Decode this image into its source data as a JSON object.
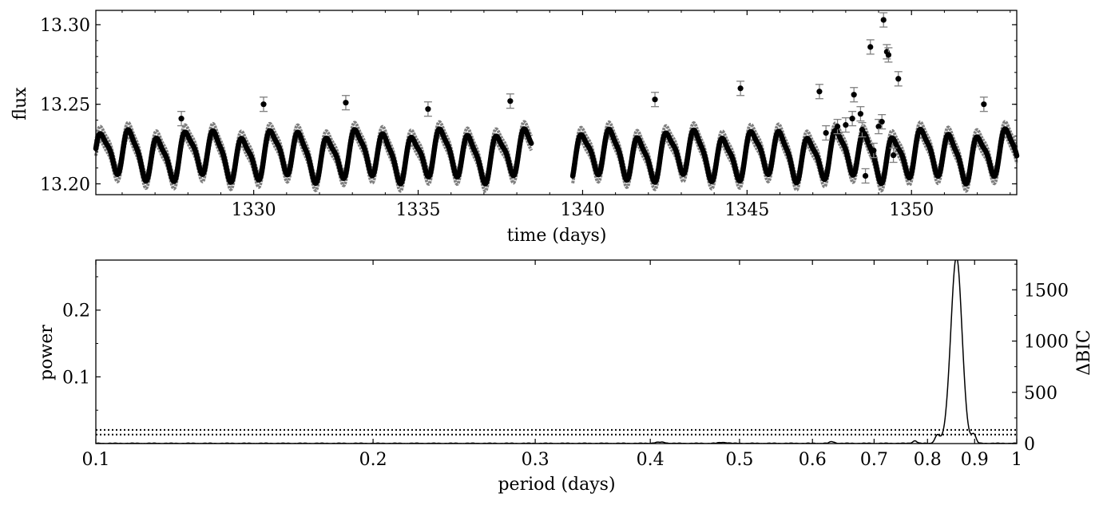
{
  "chart_data": [
    {
      "type": "scatter",
      "title": "",
      "xlabel": "time (days)",
      "ylabel": "flux",
      "xlim": [
        1325.2,
        1353.2
      ],
      "ylim": [
        13.1932,
        13.309
      ],
      "xticks": [
        1330,
        1335,
        1340,
        1345,
        1350
      ],
      "xtick_labels": [
        "1330",
        "1335",
        "1340",
        "1345",
        "1350"
      ],
      "yticks": [
        13.2,
        13.25,
        13.3
      ],
      "ytick_labels": [
        "13.20",
        "13.25",
        "13.30"
      ],
      "grid": false,
      "legend": "none",
      "colors": {
        "points": "#000000",
        "errorbars": "#808080"
      },
      "main_series": {
        "description_of_gap": "no data between 1338.45 and 1339.7",
        "segments": [
          [
            1325.2,
            1338.45
          ],
          [
            1339.7,
            1353.2
          ]
        ],
        "typical_error": 0.0045
      },
      "outliers": [
        {
          "x": 1327.8,
          "y": 13.241,
          "err": 0.0045
        },
        {
          "x": 1330.3,
          "y": 13.25,
          "err": 0.0045
        },
        {
          "x": 1332.8,
          "y": 13.251,
          "err": 0.0045
        },
        {
          "x": 1335.3,
          "y": 13.247,
          "err": 0.0045
        },
        {
          "x": 1337.8,
          "y": 13.252,
          "err": 0.0045
        },
        {
          "x": 1342.2,
          "y": 13.253,
          "err": 0.0045
        },
        {
          "x": 1344.8,
          "y": 13.26,
          "err": 0.0045
        },
        {
          "x": 1347.2,
          "y": 13.258,
          "err": 0.0045
        },
        {
          "x": 1347.4,
          "y": 13.232,
          "err": 0.0045
        },
        {
          "x": 1347.75,
          "y": 13.236,
          "err": 0.0045
        },
        {
          "x": 1348.0,
          "y": 13.237,
          "err": 0.0045
        },
        {
          "x": 1348.2,
          "y": 13.241,
          "err": 0.0045
        },
        {
          "x": 1348.25,
          "y": 13.256,
          "err": 0.0045
        },
        {
          "x": 1348.45,
          "y": 13.244,
          "err": 0.0045
        },
        {
          "x": 1348.5,
          "y": 13.234,
          "err": 0.0045
        },
        {
          "x": 1348.6,
          "y": 13.205,
          "err": 0.0045
        },
        {
          "x": 1348.75,
          "y": 13.286,
          "err": 0.0045
        },
        {
          "x": 1348.85,
          "y": 13.221,
          "err": 0.0045
        },
        {
          "x": 1349.0,
          "y": 13.236,
          "err": 0.0045
        },
        {
          "x": 1349.1,
          "y": 13.239,
          "err": 0.0045
        },
        {
          "x": 1349.15,
          "y": 13.303,
          "err": 0.0045
        },
        {
          "x": 1349.25,
          "y": 13.283,
          "err": 0.0045
        },
        {
          "x": 1349.3,
          "y": 13.281,
          "err": 0.0045
        },
        {
          "x": 1349.45,
          "y": 13.218,
          "err": 0.0045
        },
        {
          "x": 1349.6,
          "y": 13.266,
          "err": 0.0045
        },
        {
          "x": 1352.2,
          "y": 13.25,
          "err": 0.0045
        }
      ]
    },
    {
      "type": "line",
      "title": "",
      "xlabel": "period (days)",
      "ylabel": "power",
      "ylabel_right": "ΔBIC",
      "xscale": "log",
      "xlim": [
        0.1,
        1.0
      ],
      "ylim": [
        0,
        0.275
      ],
      "ylim_right": [
        0,
        1790
      ],
      "xticks": [
        0.1,
        0.2,
        0.3,
        0.4,
        0.5,
        0.6,
        0.7,
        0.8,
        0.9,
        1.0
      ],
      "xtick_labels": [
        "0.1",
        "0.2",
        "0.3",
        "0.4",
        "0.5",
        "0.6",
        "0.7",
        "0.8",
        "0.9",
        "1"
      ],
      "yticks": [
        0.1,
        0.2
      ],
      "ytick_labels": [
        "0.1",
        "0.2"
      ],
      "yticks_right": [
        0,
        500,
        1000,
        1500
      ],
      "ytick_labels_right": [
        "0",
        "500",
        "1000",
        "1500"
      ],
      "thresholds": [
        0.0135,
        0.0205
      ],
      "peaks": [
        {
          "period": 0.86,
          "power": 0.28,
          "width": 0.012
        },
        {
          "period": 0.82,
          "power": 0.012,
          "width": 0.005
        },
        {
          "period": 0.898,
          "power": 0.013,
          "width": 0.005
        },
        {
          "period": 0.775,
          "power": 0.004,
          "width": 0.004
        },
        {
          "period": 0.63,
          "power": 0.0025,
          "width": 0.004
        },
        {
          "period": 0.41,
          "power": 0.0018,
          "width": 0.005
        },
        {
          "period": 0.48,
          "power": 0.0015,
          "width": 0.005
        }
      ],
      "grid": false,
      "legend": "none"
    }
  ]
}
